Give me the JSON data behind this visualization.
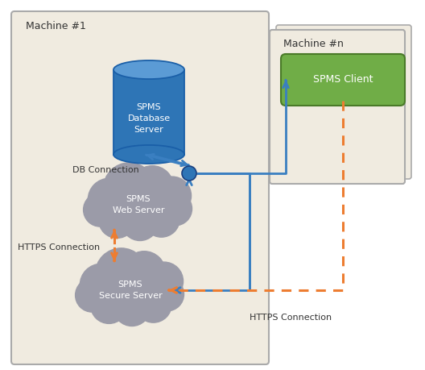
{
  "machine1_label": "Machine #1",
  "machinen_label": "Machine #n",
  "db_label": "SPMS\nDatabase\nServer",
  "client_label": "SPMS Client",
  "web_server_label": "SPMS\nWeb Server",
  "secure_server_label": "SPMS\nSecure Server",
  "db_connection_label": "DB Connection",
  "https_connection_label1": "HTTPS Connection",
  "https_connection_label2": "HTTPS Connection",
  "bg_beige": "#f0ebe0",
  "bg_border": "#aaaaaa",
  "db_top_color": "#5b9bd5",
  "db_body_color": "#2e75b6",
  "db_edge_color": "#1a5fa8",
  "client_fill": "#70ad47",
  "client_edge": "#4a7a28",
  "cloud_color": "#9b9ba8",
  "dot_color": "#2e75b6",
  "blue_arrow": "#3a7fc1",
  "orange_arrow": "#ed7d31",
  "text_color": "#333333",
  "white": "#ffffff"
}
